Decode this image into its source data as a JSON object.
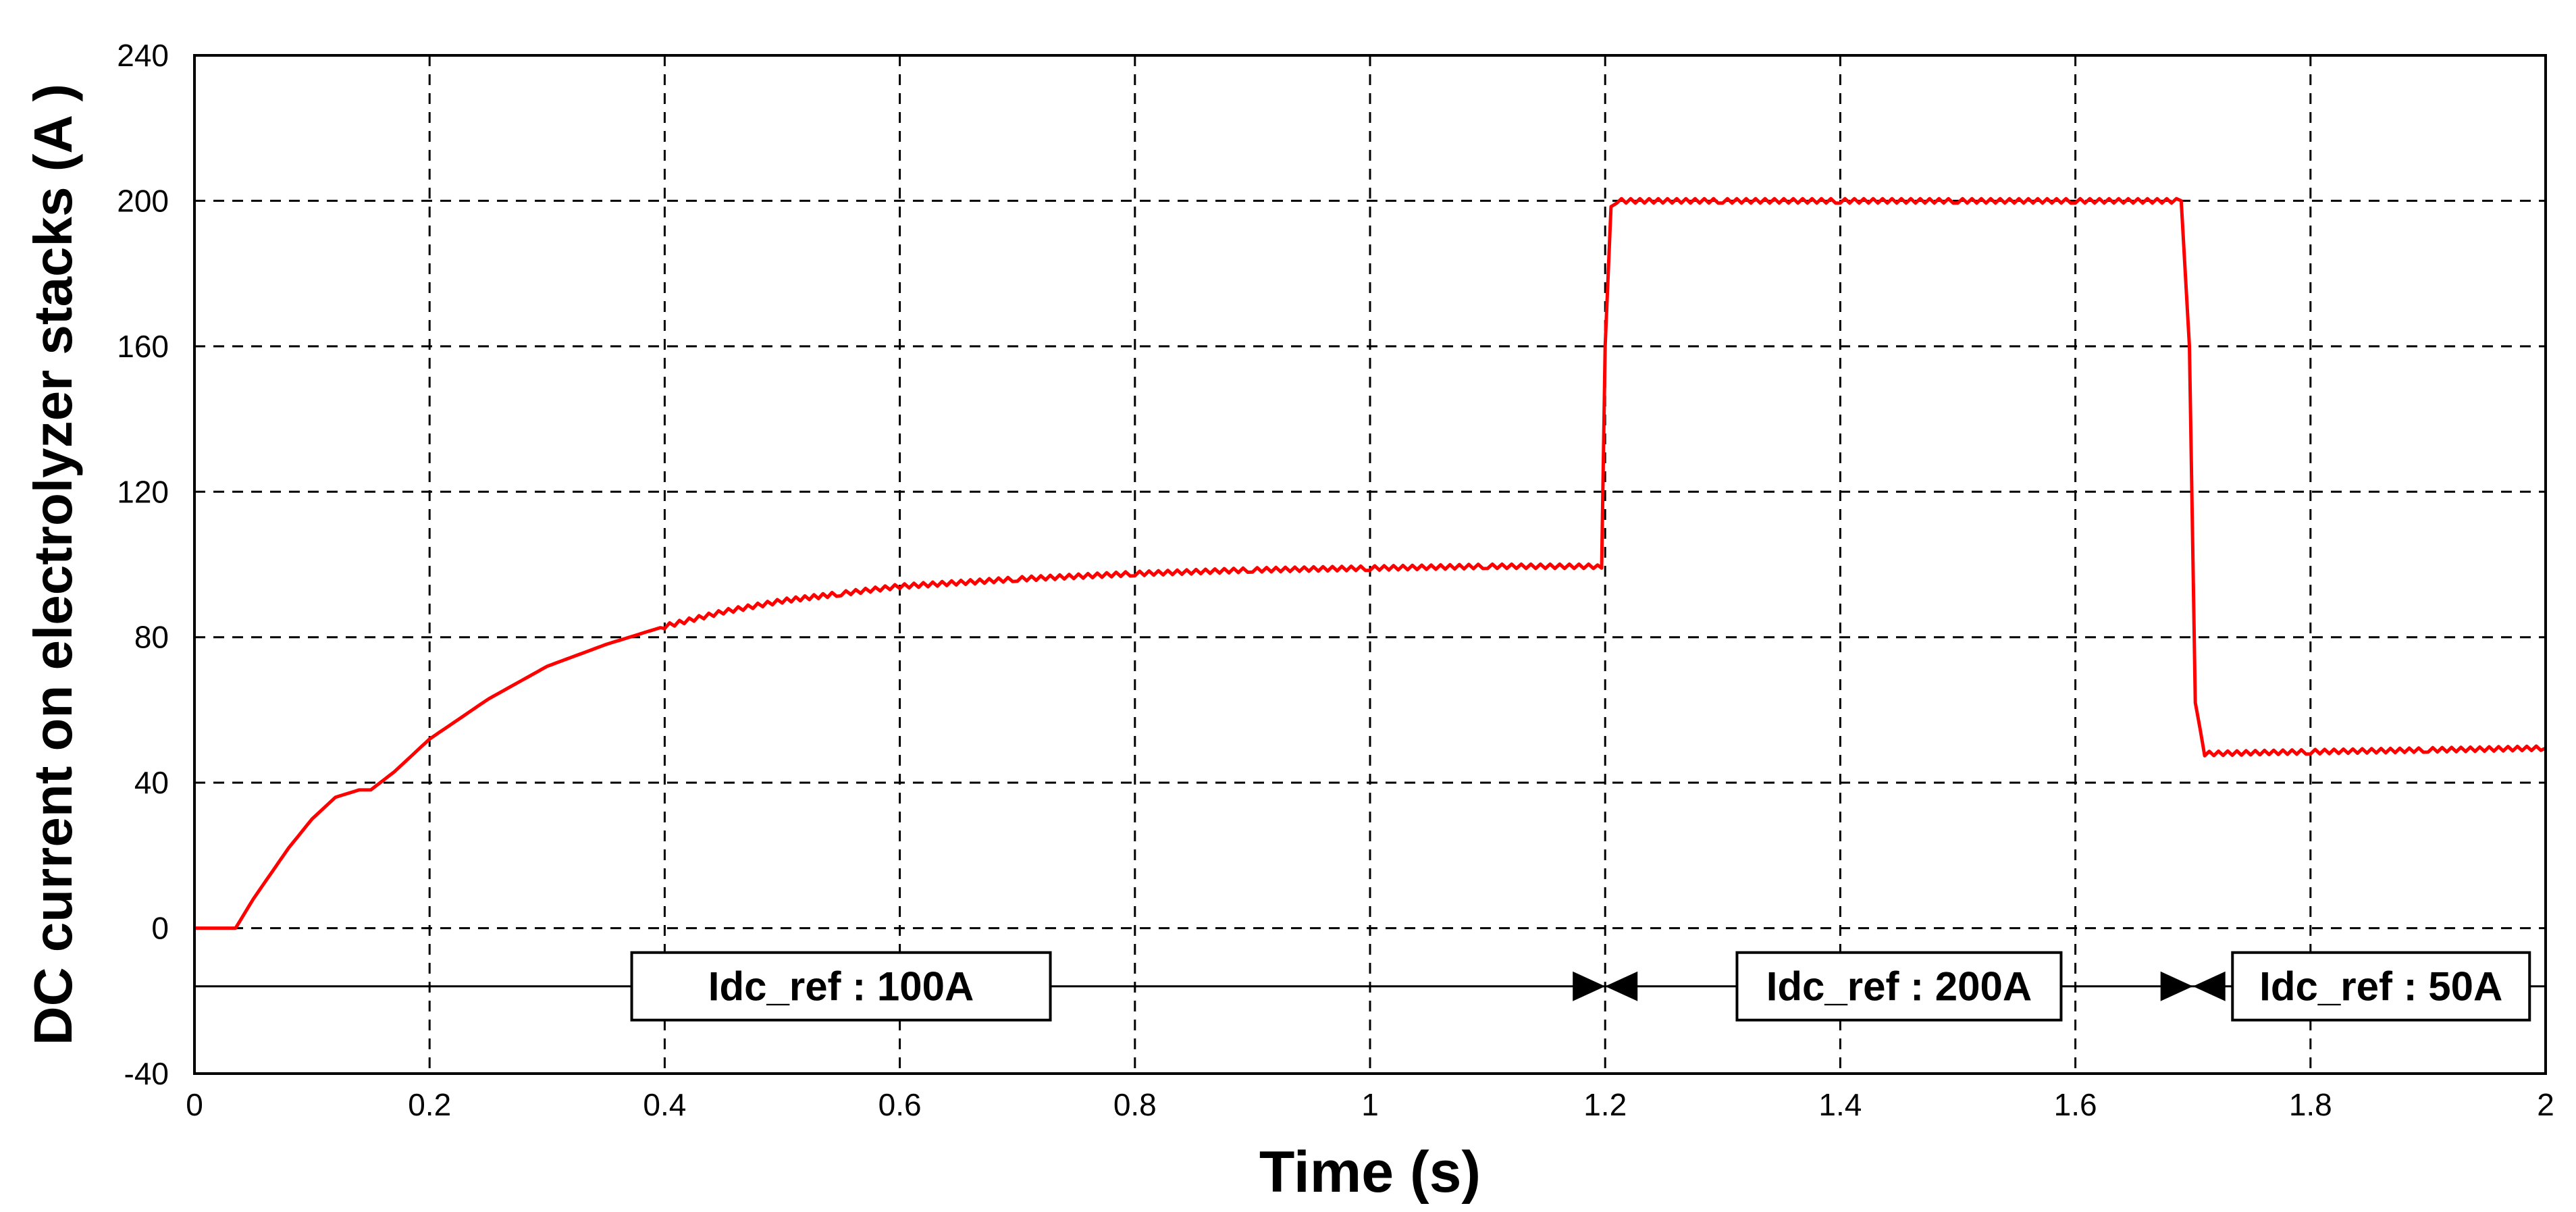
{
  "chart_data": {
    "type": "line",
    "xlabel": "Time (s)",
    "ylabel": "DC current on electrolyzer stacks (A )",
    "xlim": [
      0,
      2
    ],
    "ylim": [
      -40,
      240
    ],
    "xticks": [
      0,
      0.2,
      0.4,
      0.6,
      0.8,
      1,
      1.2,
      1.4,
      1.6,
      1.8,
      2
    ],
    "xtick_labels": [
      "0",
      "0.2",
      "0.4",
      "0.6",
      "0.8",
      "1",
      "1.2",
      "1.4",
      "1.6",
      "1.8",
      "2"
    ],
    "yticks": [
      -40,
      0,
      40,
      80,
      120,
      160,
      200,
      240
    ],
    "ytick_labels": [
      "-40",
      "0",
      "40",
      "80",
      "120",
      "160",
      "200",
      "240"
    ],
    "grid": true,
    "series": [
      {
        "color": "#ff0000",
        "x": [
          0,
          0.035,
          0.05,
          0.08,
          0.1,
          0.12,
          0.14,
          0.15,
          0.17,
          0.2,
          0.25,
          0.3,
          0.35,
          0.4,
          0.45,
          0.5,
          0.55,
          0.6,
          0.7,
          0.8,
          0.9,
          1.0,
          1.1,
          1.19,
          1.197,
          1.2,
          1.205,
          1.21,
          1.3,
          1.4,
          1.5,
          1.6,
          1.69,
          1.697,
          1.702,
          1.71,
          1.8,
          1.9,
          2.0
        ],
        "y": [
          0,
          0,
          8,
          22,
          30,
          36,
          38,
          38,
          43,
          52,
          63,
          72,
          78,
          83,
          87,
          90,
          92,
          94,
          96,
          97.5,
          98.5,
          99,
          99.5,
          99.5,
          99,
          160,
          199,
          200,
          200,
          200,
          200,
          200,
          200,
          160,
          62,
          48,
          48.5,
          49,
          49.5
        ]
      }
    ],
    "annotations": [
      {
        "text": "Idc_ref : 100A",
        "x_start": 0,
        "x_end": 1.2,
        "y": -16
      },
      {
        "text": "Idc_ref : 200A",
        "x_start": 1.2,
        "x_end": 1.7,
        "y": -16
      },
      {
        "text": "Idc_ref : 50A",
        "x_start": 1.7,
        "x_end": 2.0,
        "y": -16
      }
    ]
  }
}
